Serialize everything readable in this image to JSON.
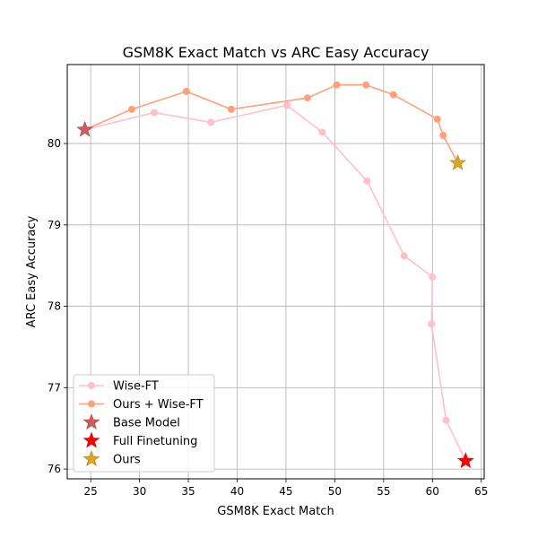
{
  "chart_data": {
    "type": "line",
    "title": "GSM8K Exact Match vs ARC Easy Accuracy",
    "xlabel": "GSM8K Exact Match",
    "ylabel": "ARC Easy Accuracy",
    "xlim": [
      22.6,
      65.3
    ],
    "ylim": [
      75.88,
      80.97
    ],
    "xticks": [
      25,
      30,
      35,
      40,
      45,
      50,
      55,
      60,
      65
    ],
    "yticks": [
      76,
      77,
      78,
      79,
      80
    ],
    "grid": true,
    "legend_position": "lower-left",
    "series": [
      {
        "name": "Wise-FT",
        "kind": "line",
        "color": "#ffc0cb",
        "marker": "circle",
        "x": [
          24.4,
          31.5,
          37.3,
          45.1,
          48.7,
          53.3,
          57.1,
          60.0,
          59.9,
          61.4,
          63.4
        ],
        "y": [
          80.17,
          80.38,
          80.26,
          80.47,
          80.14,
          79.54,
          78.62,
          78.36,
          77.78,
          76.6,
          76.1
        ]
      },
      {
        "name": "Ours + Wise-FT",
        "kind": "line",
        "color": "#ffa07a",
        "marker": "circle",
        "x": [
          24.4,
          29.2,
          34.8,
          39.4,
          47.2,
          50.2,
          53.2,
          56.0,
          60.5,
          61.1,
          62.6
        ],
        "y": [
          80.17,
          80.42,
          80.64,
          80.42,
          80.56,
          80.72,
          80.72,
          80.6,
          80.3,
          80.1,
          79.76
        ]
      },
      {
        "name": "Base Model",
        "kind": "point",
        "color": "#cd5c5c",
        "marker": "star",
        "x": [
          24.4
        ],
        "y": [
          80.17
        ]
      },
      {
        "name": "Full Finetuning",
        "kind": "point",
        "color": "#ff0000",
        "marker": "star",
        "x": [
          63.4
        ],
        "y": [
          76.1
        ]
      },
      {
        "name": "Ours",
        "kind": "point",
        "color": "#daa520",
        "marker": "star",
        "x": [
          62.6
        ],
        "y": [
          79.76
        ]
      }
    ]
  }
}
